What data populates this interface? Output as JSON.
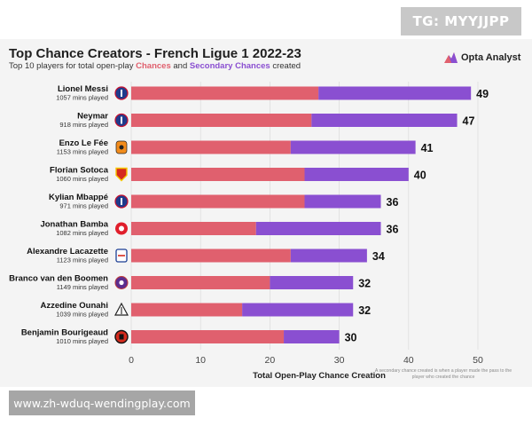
{
  "watermark_top": "TG: MYYJJPP",
  "watermark_bottom": "www.zh-wduq-wendingplay.com",
  "brand": {
    "name": "Opta Analyst",
    "icon": "opta-logo-icon"
  },
  "footnote": "A secondary chance created is when a player made the pass to the player who created the chance",
  "chart_data": {
    "type": "bar",
    "orientation": "horizontal",
    "stacked": true,
    "title": "Top Chance Creators - French Ligue 1 2022-23",
    "subtitle_parts": [
      "Top 10 players for total open-play ",
      "Chances",
      " and ",
      "Secondary Chances",
      " created"
    ],
    "xlabel": "Total Open-Play Chance Creation",
    "xlim": [
      0,
      50
    ],
    "xticks": [
      0,
      10,
      20,
      30,
      40,
      50
    ],
    "grid": true,
    "colors": {
      "chances": "#e0606e",
      "secondary": "#8a4fd1"
    },
    "categories": [
      {
        "name": "Lionel Messi",
        "mins": "1057 mins played",
        "chances": 27,
        "secondary": 22,
        "total": 49,
        "club_icon": "psg-crest-icon"
      },
      {
        "name": "Neymar",
        "mins": "918 mins played",
        "chances": 26,
        "secondary": 21,
        "total": 47,
        "club_icon": "psg-crest-icon"
      },
      {
        "name": "Enzo Le Fée",
        "mins": "1153 mins played",
        "chances": 23,
        "secondary": 18,
        "total": 41,
        "club_icon": "lorient-crest-icon"
      },
      {
        "name": "Florian Sotoca",
        "mins": "1060 mins played",
        "chances": 25,
        "secondary": 15,
        "total": 40,
        "club_icon": "lens-crest-icon"
      },
      {
        "name": "Kylian Mbappé",
        "mins": "971 mins played",
        "chances": 25,
        "secondary": 11,
        "total": 36,
        "club_icon": "psg-crest-icon"
      },
      {
        "name": "Jonathan Bamba",
        "mins": "1082 mins played",
        "chances": 18,
        "secondary": 18,
        "total": 36,
        "club_icon": "lille-crest-icon"
      },
      {
        "name": "Alexandre Lacazette",
        "mins": "1123 mins played",
        "chances": 23,
        "secondary": 11,
        "total": 34,
        "club_icon": "lyon-crest-icon"
      },
      {
        "name": "Branco van den Boomen",
        "mins": "1149 mins played",
        "chances": 20,
        "secondary": 12,
        "total": 32,
        "club_icon": "toulouse-crest-icon"
      },
      {
        "name": "Azzedine Ounahi",
        "mins": "1039 mins played",
        "chances": 16,
        "secondary": 16,
        "total": 32,
        "club_icon": "angers-crest-icon"
      },
      {
        "name": "Benjamin Bourigeaud",
        "mins": "1010 mins played",
        "chances": 22,
        "secondary": 8,
        "total": 30,
        "club_icon": "rennes-crest-icon"
      }
    ]
  }
}
